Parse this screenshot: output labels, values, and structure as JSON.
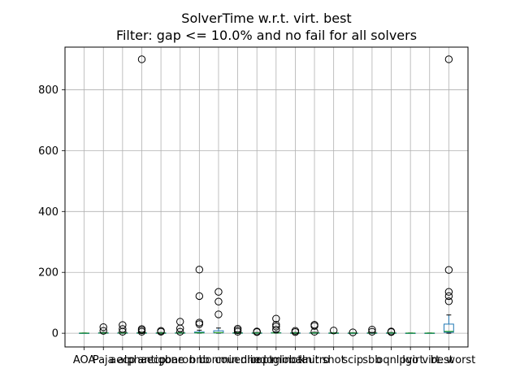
{
  "chart_data": {
    "type": "box",
    "title": "SolverTime w.r.t. virt. best",
    "subtitle": "Filter: gap <= 10.0% and no fail for all solvers",
    "xlabel": "",
    "ylabel": "",
    "ylim": [
      -45,
      940
    ],
    "yticks": [
      0,
      200,
      400,
      600,
      800
    ],
    "grid": true,
    "colors": {
      "box": "#1f77b4",
      "median": "#2ca02c",
      "outlier": "#000000"
    },
    "categories": [
      "AOA",
      "Paja",
      "aecp",
      "alphaecp",
      "antigone",
      "baron",
      "bnb",
      "bonmin",
      "couenne",
      "dicopt",
      "lindoglobal",
      "minotaur",
      "knitro",
      "shot",
      "scip",
      "sbb",
      "oqnlp",
      "lgo",
      "virt. best",
      "virt. worst"
    ],
    "boxes": [
      {
        "q1": 0.3,
        "median": 0.4,
        "q3": 0.6,
        "whisker_low": 0.1,
        "whisker_high": 0.9,
        "outliers": []
      },
      {
        "q1": 0.5,
        "median": 0.8,
        "q3": 1.5,
        "whisker_low": 0.1,
        "whisker_high": 3,
        "outliers": [
          8,
          20
        ]
      },
      {
        "q1": 0.5,
        "median": 0.8,
        "q3": 1.5,
        "whisker_low": 0.1,
        "whisker_high": 3,
        "outliers": [
          5,
          14,
          27
        ]
      },
      {
        "q1": 0.5,
        "median": 0.8,
        "q3": 1.5,
        "whisker_low": 0.1,
        "whisker_high": 3,
        "outliers": [
          5,
          10,
          14,
          900
        ]
      },
      {
        "q1": 0.4,
        "median": 0.7,
        "q3": 1.2,
        "whisker_low": 0.1,
        "whisker_high": 2.5,
        "outliers": [
          5,
          8
        ]
      },
      {
        "q1": 0.5,
        "median": 0.8,
        "q3": 1.5,
        "whisker_low": 0.1,
        "whisker_high": 3,
        "outliers": [
          5,
          16,
          38
        ]
      },
      {
        "q1": 1,
        "median": 1.5,
        "q3": 4,
        "whisker_low": 0.1,
        "whisker_high": 10,
        "outliers": [
          30,
          35,
          122,
          209
        ]
      },
      {
        "q1": 1,
        "median": 2,
        "q3": 8,
        "whisker_low": 0.1,
        "whisker_high": 17,
        "outliers": [
          62,
          104,
          136
        ]
      },
      {
        "q1": 0.5,
        "median": 0.8,
        "q3": 1.5,
        "whisker_low": 0.1,
        "whisker_high": 3,
        "outliers": [
          5,
          10,
          15
        ]
      },
      {
        "q1": 0.4,
        "median": 0.7,
        "q3": 1.2,
        "whisker_low": 0.1,
        "whisker_high": 2.5,
        "outliers": [
          4,
          6
        ]
      },
      {
        "q1": 0.5,
        "median": 1,
        "q3": 2,
        "whisker_low": 0.1,
        "whisker_high": 5,
        "outliers": [
          12,
          22,
          28,
          48
        ]
      },
      {
        "q1": 0.4,
        "median": 0.7,
        "q3": 1.2,
        "whisker_low": 0.1,
        "whisker_high": 2.5,
        "outliers": [
          4,
          8
        ]
      },
      {
        "q1": 0.5,
        "median": 0.8,
        "q3": 1.5,
        "whisker_low": 0.1,
        "whisker_high": 3,
        "outliers": [
          5,
          24,
          28
        ]
      },
      {
        "q1": 0.4,
        "median": 0.6,
        "q3": 1,
        "whisker_low": 0.1,
        "whisker_high": 2,
        "outliers": [
          9
        ]
      },
      {
        "q1": 0.3,
        "median": 0.5,
        "q3": 0.8,
        "whisker_low": 0.1,
        "whisker_high": 1.5,
        "outliers": [
          3
        ]
      },
      {
        "q1": 0.4,
        "median": 0.7,
        "q3": 1.2,
        "whisker_low": 0.1,
        "whisker_high": 2.5,
        "outliers": [
          5,
          12
        ]
      },
      {
        "q1": 0.4,
        "median": 0.7,
        "q3": 1.2,
        "whisker_low": 0.1,
        "whisker_high": 2.5,
        "outliers": [
          4,
          6
        ]
      },
      {
        "q1": 0.3,
        "median": 0.4,
        "q3": 0.6,
        "whisker_low": 0.1,
        "whisker_high": 0.9,
        "outliers": []
      },
      {
        "q1": 0.3,
        "median": 0.4,
        "q3": 0.6,
        "whisker_low": 0.1,
        "whisker_high": 0.9,
        "outliers": []
      },
      {
        "q1": 3,
        "median": 6,
        "q3": 30,
        "whisker_low": 0.1,
        "whisker_high": 60,
        "outliers": [
          105,
          122,
          136,
          208,
          900
        ]
      }
    ]
  }
}
